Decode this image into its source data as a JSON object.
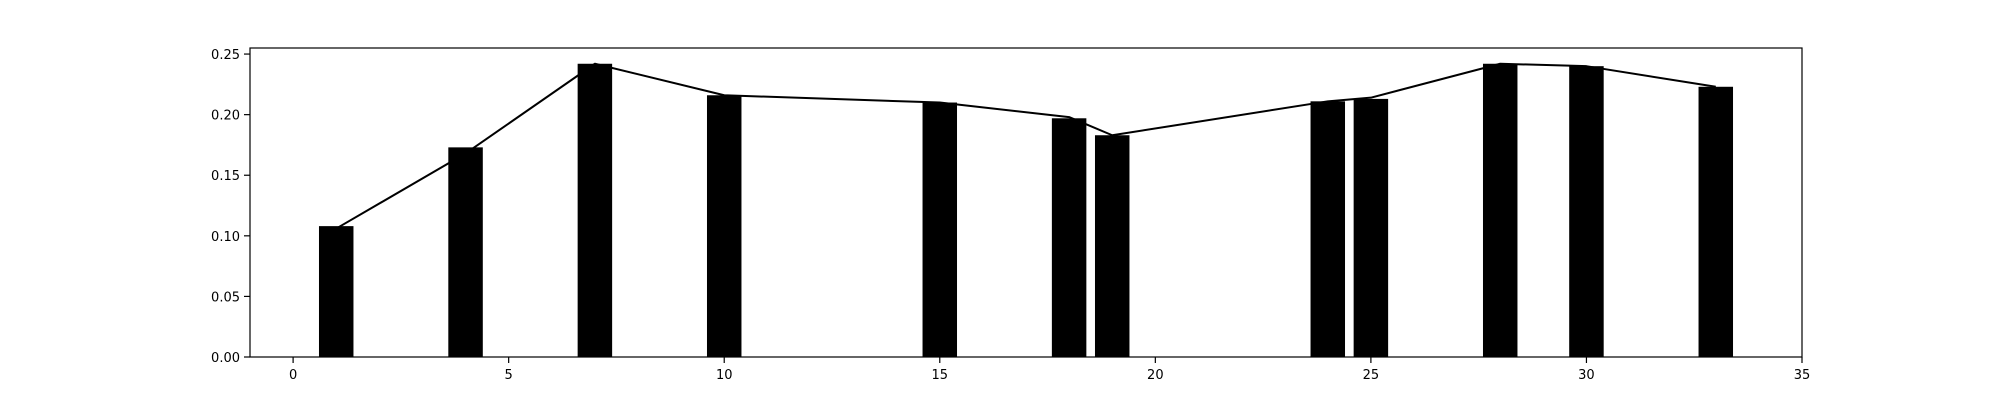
{
  "chart_data": {
    "type": "bar",
    "title": "",
    "xlabel": "",
    "ylabel": "",
    "xlim": [
      -1,
      35
    ],
    "ylim": [
      0,
      0.255
    ],
    "grid": false,
    "legend": "none",
    "x_ticks": [
      0,
      5,
      10,
      15,
      20,
      25,
      30,
      35
    ],
    "x_tick_labels": [
      "0",
      "5",
      "10",
      "15",
      "20",
      "25",
      "30",
      "35"
    ],
    "y_ticks": [
      0,
      0.05,
      0.1,
      0.15,
      0.2,
      0.25
    ],
    "y_tick_labels": [
      "0.00",
      "0.05",
      "0.10",
      "0.15",
      "0.20",
      "0.25"
    ],
    "bar_width": 0.8,
    "colors": {
      "bars": "#000000",
      "line": "#000000",
      "axes": "#000000",
      "background": "#ffffff"
    },
    "series": [
      {
        "kind": "bar",
        "x": [
          1,
          4,
          7,
          10,
          15,
          18,
          19,
          24,
          25,
          28,
          30,
          33
        ],
        "values": [
          0.108,
          0.173,
          0.242,
          0.216,
          0.21,
          0.197,
          0.183,
          0.211,
          0.213,
          0.242,
          0.24,
          0.223
        ]
      },
      {
        "kind": "line",
        "x": [
          1,
          4,
          7,
          10,
          15,
          18,
          19,
          24,
          25,
          28,
          30,
          33
        ],
        "values": [
          0.106,
          0.168,
          0.242,
          0.216,
          0.21,
          0.198,
          0.183,
          0.211,
          0.214,
          0.242,
          0.24,
          0.223
        ]
      }
    ]
  }
}
